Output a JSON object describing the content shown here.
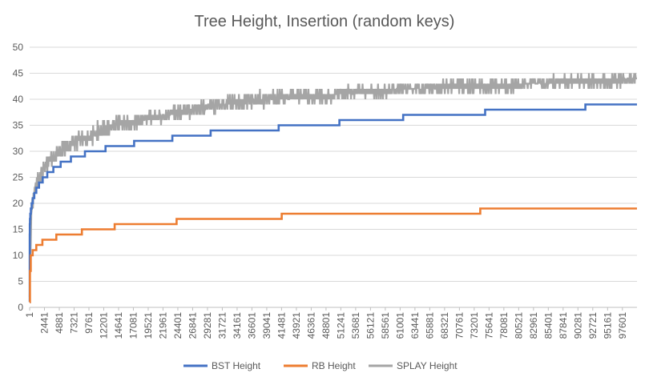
{
  "chart_data": {
    "type": "line",
    "title": "Tree Height, Insertion (random keys)",
    "xlabel": "",
    "ylabel": "",
    "ylim": [
      0,
      50
    ],
    "xlim": [
      1,
      100000
    ],
    "y_ticks": [
      "0",
      "5",
      "10",
      "15",
      "20",
      "25",
      "30",
      "35",
      "40",
      "45",
      "50"
    ],
    "x_tick_labels": [
      "1",
      "2441",
      "4881",
      "7321",
      "9761",
      "12201",
      "14641",
      "17081",
      "19521",
      "21961",
      "24401",
      "26841",
      "29281",
      "31721",
      "34161",
      "36601",
      "39041",
      "41481",
      "43921",
      "46361",
      "48801",
      "51241",
      "53681",
      "56121",
      "58561",
      "61001",
      "63441",
      "65881",
      "68321",
      "70761",
      "73201",
      "75641",
      "78081",
      "80521",
      "82961",
      "85401",
      "87841",
      "90281",
      "92721",
      "95161",
      "97601"
    ],
    "grid": true,
    "legend_position": "bottom",
    "series": [
      {
        "name": "BST Height",
        "color": "#4472c4",
        "style": "step",
        "x": [
          1,
          10,
          30,
          60,
          110,
          200,
          330,
          520,
          760,
          1100,
          1550,
          2150,
          2900,
          3900,
          5100,
          6800,
          9100,
          12500,
          17200,
          23500,
          29800,
          41000,
          51000,
          61500,
          75000,
          91500,
          100000
        ],
        "y": [
          1,
          14,
          16,
          17,
          18,
          19,
          20,
          21,
          22,
          23,
          24,
          25,
          26,
          27,
          28,
          29,
          30,
          31,
          32,
          33,
          34,
          35,
          36,
          37,
          38,
          39,
          40
        ]
      },
      {
        "name": "RB Height",
        "color": "#ed7d31",
        "style": "step",
        "x": [
          1,
          60,
          180,
          500,
          1100,
          2100,
          4400,
          8600,
          14000,
          24200,
          41500,
          74200,
          100000
        ],
        "y": [
          1,
          7,
          10,
          11,
          12,
          13,
          14,
          15,
          16,
          17,
          18,
          19,
          20
        ]
      },
      {
        "name": "SPLAY Height",
        "color": "#a5a5a5",
        "style": "noisy-band",
        "x": [
          1,
          300,
          1000,
          2441,
          4881,
          7321,
          9761,
          12201,
          14641,
          17081,
          19521,
          24401,
          29281,
          34161,
          39041,
          43921,
          48801,
          53681,
          58561,
          63441,
          68321,
          73201,
          78081,
          82961,
          87841,
          92721,
          97601,
          100000
        ],
        "low": [
          1,
          17,
          22,
          25,
          28,
          30,
          31,
          32,
          34,
          34,
          35,
          36,
          37,
          38,
          38,
          39,
          39,
          40,
          40,
          41,
          41,
          41,
          41,
          42,
          42,
          42,
          42,
          43
        ],
        "high": [
          4,
          22,
          25,
          29,
          31,
          34,
          35,
          36,
          37,
          37,
          38,
          39,
          40,
          41,
          42,
          42,
          42,
          43,
          43,
          43,
          44,
          44,
          44,
          44,
          45,
          45,
          45,
          45
        ]
      }
    ]
  }
}
